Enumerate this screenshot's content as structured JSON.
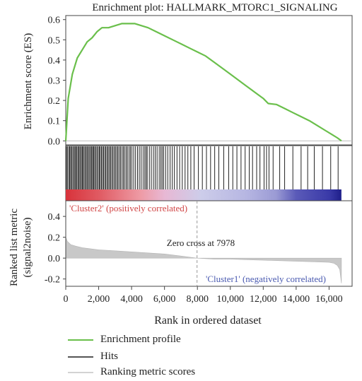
{
  "chart_data": {
    "type": "line",
    "title": "Enrichment plot: HALLMARK_MTORC1_SIGNALING",
    "xlabel": "Rank in ordered dataset",
    "ylabel_es": "Enrichment score (ES)",
    "ylabel_metric": [
      "Ranked list metric",
      "(signal2noise)"
    ],
    "xlim": [
      0,
      17400
    ],
    "es_ylim": [
      -0.02,
      0.62
    ],
    "metric_ylim": [
      -0.27,
      0.55
    ],
    "x_ticks": [
      0,
      2000,
      4000,
      6000,
      8000,
      10000,
      12000,
      14000,
      16000
    ],
    "x_tick_labels": [
      "0",
      "2,000",
      "4,000",
      "6,000",
      "8,000",
      "10,000",
      "12,000",
      "14,000",
      "16,000"
    ],
    "es_ticks": [
      0.0,
      0.1,
      0.2,
      0.3,
      0.4,
      0.5,
      0.6
    ],
    "es_tick_labels": [
      "0.0",
      "0.1",
      "0.2",
      "0.3",
      "0.4",
      "0.5",
      "0.6"
    ],
    "metric_ticks": [
      0.4,
      0.2,
      0.0,
      -0.2
    ],
    "metric_tick_labels": [
      "0.4",
      "0.2",
      "0.0",
      "-0.2"
    ],
    "series": [
      {
        "name": "Enrichment profile",
        "color": "#6abf4b",
        "x": [
          0,
          150,
          400,
          700,
          1000,
          1300,
          1600,
          1900,
          2200,
          2600,
          3000,
          3400,
          3800,
          4200,
          4600,
          5000,
          5500,
          6000,
          6500,
          7000,
          7500,
          8000,
          8500,
          9000,
          9500,
          10000,
          10500,
          11000,
          11500,
          12000,
          12300,
          12800,
          13300,
          13800,
          14300,
          14800,
          15300,
          15800,
          16200,
          16500,
          16750
        ],
        "y": [
          0.0,
          0.21,
          0.33,
          0.41,
          0.45,
          0.49,
          0.51,
          0.54,
          0.56,
          0.56,
          0.57,
          0.58,
          0.58,
          0.58,
          0.57,
          0.56,
          0.54,
          0.52,
          0.5,
          0.48,
          0.46,
          0.44,
          0.42,
          0.39,
          0.36,
          0.33,
          0.3,
          0.27,
          0.24,
          0.21,
          0.185,
          0.18,
          0.16,
          0.14,
          0.12,
          0.1,
          0.075,
          0.05,
          0.03,
          0.015,
          0.0
        ]
      },
      {
        "name": "Ranking metric scores",
        "color": "#c8c8c8",
        "x": [
          0,
          100,
          300,
          600,
          1000,
          1500,
          2000,
          3000,
          4000,
          5000,
          6000,
          7000,
          7978,
          9000,
          10000,
          11000,
          12000,
          13000,
          14000,
          15000,
          16000,
          16300,
          16500,
          16650,
          16750
        ],
        "y": [
          0.2,
          0.16,
          0.13,
          0.115,
          0.1,
          0.09,
          0.08,
          0.07,
          0.06,
          0.05,
          0.04,
          0.02,
          0.0,
          -0.01,
          -0.01,
          -0.015,
          -0.02,
          -0.025,
          -0.03,
          -0.035,
          -0.04,
          -0.05,
          -0.07,
          -0.11,
          -0.24
        ]
      }
    ],
    "hits": [
      40,
      100,
      180,
      240,
      300,
      360,
      430,
      500,
      560,
      620,
      680,
      750,
      810,
      870,
      940,
      1000,
      1050,
      1120,
      1190,
      1250,
      1320,
      1380,
      1450,
      1520,
      1580,
      1640,
      1700,
      1760,
      1830,
      1900,
      1970,
      2040,
      2100,
      2170,
      2240,
      2300,
      2380,
      2440,
      2520,
      2580,
      2660,
      2720,
      2800,
      2870,
      2950,
      3020,
      3100,
      3170,
      3250,
      3330,
      3420,
      3500,
      3580,
      3670,
      3750,
      3850,
      3930,
      4020,
      4130,
      4240,
      4360,
      4470,
      4580,
      4700,
      4800,
      4880,
      4950,
      5080,
      5200,
      5330,
      5440,
      5550,
      5680,
      5780,
      5860,
      5950,
      6070,
      6200,
      6340,
      6470,
      6600,
      6760,
      6920,
      7080,
      7250,
      7420,
      7600,
      7800,
      8060,
      8300,
      8550,
      8800,
      9050,
      9300,
      9600,
      9900,
      10150,
      10400,
      10650,
      10900,
      11150,
      11350,
      11600,
      11800,
      12050,
      12200,
      12350,
      12600,
      13000,
      13300,
      13800,
      14300,
      14700,
      15100,
      15600,
      16100,
      16550
    ],
    "gradient": [
      {
        "x": 0,
        "color": "#d8333b"
      },
      {
        "x": 2000,
        "color": "#e05a62"
      },
      {
        "x": 4500,
        "color": "#ee9aa4"
      },
      {
        "x": 6000,
        "color": "#e8b8d4"
      },
      {
        "x": 8200,
        "color": "#cdcdea"
      },
      {
        "x": 11000,
        "color": "#b6b6e2"
      },
      {
        "x": 12800,
        "color": "#9a9ad4"
      },
      {
        "x": 14000,
        "color": "#5a5ab8"
      },
      {
        "x": 16000,
        "color": "#3a3aa8"
      },
      {
        "x": 16750,
        "color": "#1f1f8a"
      }
    ],
    "zero_cross": 7978,
    "annotations": {
      "positive": "'Cluster2' (positively correlated)",
      "positive_color": "#d04545",
      "negative": "'Cluster1' (negatively correlated)",
      "negative_color": "#4a5ab0",
      "zero_cross_text": "Zero cross at 7978"
    },
    "legend": [
      {
        "label": "Enrichment profile",
        "color": "#6abf4b"
      },
      {
        "label": "Hits",
        "color": "#555555"
      },
      {
        "label": "Ranking metric scores",
        "color": "#d3d3d3"
      }
    ]
  }
}
